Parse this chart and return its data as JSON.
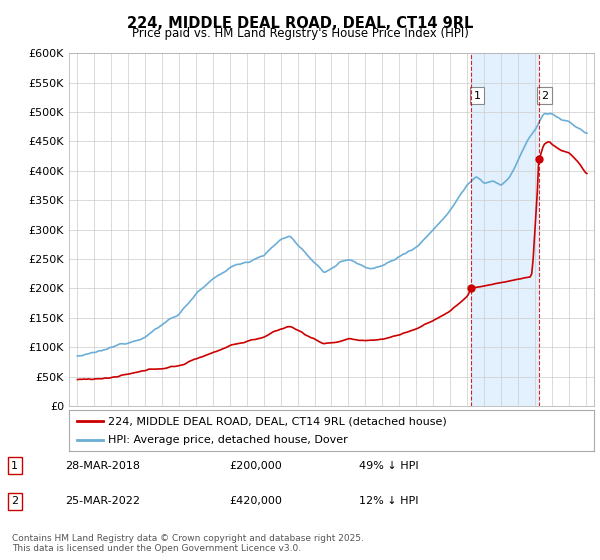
{
  "title": "224, MIDDLE DEAL ROAD, DEAL, CT14 9RL",
  "subtitle": "Price paid vs. HM Land Registry's House Price Index (HPI)",
  "footnote": "Contains HM Land Registry data © Crown copyright and database right 2025.\nThis data is licensed under the Open Government Licence v3.0.",
  "legend_house": "224, MIDDLE DEAL ROAD, DEAL, CT14 9RL (detached house)",
  "legend_hpi": "HPI: Average price, detached house, Dover",
  "annotation1_label": "1",
  "annotation1_date": "28-MAR-2018",
  "annotation1_price": "£200,000",
  "annotation1_hpi": "49% ↓ HPI",
  "annotation1_value": 200000,
  "annotation1_year": 2018.23,
  "annotation2_label": "2",
  "annotation2_date": "25-MAR-2022",
  "annotation2_price": "£420,000",
  "annotation2_hpi": "12% ↓ HPI",
  "annotation2_value": 420000,
  "annotation2_year": 2022.23,
  "hpi_color": "#6baed6",
  "house_color": "#cc0000",
  "shade_color": "#ddeeff",
  "ylim_max": 600000,
  "ylim_min": 0,
  "xlim_min": 1994.5,
  "xlim_max": 2025.5,
  "background_color": "#ffffff",
  "grid_color": "#cccccc",
  "ytick_labels": [
    "£0",
    "£50K",
    "£100K",
    "£150K",
    "£200K",
    "£250K",
    "£300K",
    "£350K",
    "£400K",
    "£450K",
    "£500K",
    "£550K",
    "£600K"
  ],
  "ytick_values": [
    0,
    50000,
    100000,
    150000,
    200000,
    250000,
    300000,
    350000,
    400000,
    450000,
    500000,
    550000,
    600000
  ]
}
